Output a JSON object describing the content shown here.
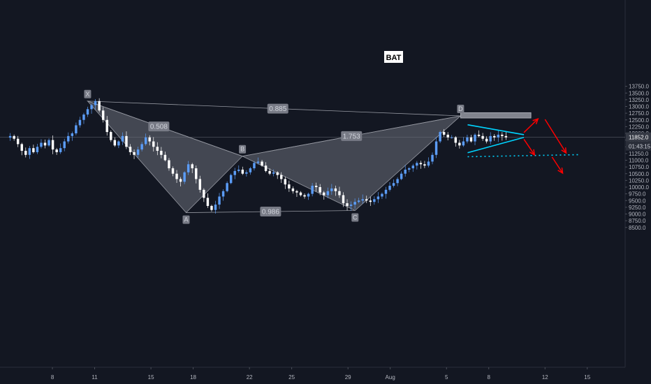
{
  "chart_data": {
    "type": "candlestick",
    "title": "BAT",
    "x_range": [
      "2020-07-05",
      "2020-08-16"
    ],
    "ylim": [
      8300,
      13800
    ],
    "y_ticks": [
      8500,
      8750,
      9000,
      9250,
      9500,
      9750,
      10000,
      10250,
      10500,
      10750,
      11000,
      11250,
      11500,
      11750,
      12000,
      12250,
      12500,
      12750,
      13000,
      13250,
      13500,
      13750
    ],
    "y_tick_labels": [
      "8500.0",
      "8750.0",
      "9000.0",
      "9250.0",
      "9500.0",
      "9750.0",
      "10000.0",
      "10250.0",
      "10500.0",
      "10750.0",
      "11000.0",
      "11250.0",
      "11500.0",
      "11750.0",
      "12000.0",
      "12250.0",
      "12500.0",
      "12750.0",
      "13000.0",
      "13250.0",
      "13500.0",
      "13750.0"
    ],
    "x_ticks": [
      {
        "date": "2020-07-08",
        "label": "8"
      },
      {
        "date": "2020-07-11",
        "label": "11"
      },
      {
        "date": "2020-07-15",
        "label": "15"
      },
      {
        "date": "2020-07-18",
        "label": "18"
      },
      {
        "date": "2020-07-22",
        "label": "22"
      },
      {
        "date": "2020-07-25",
        "label": "25"
      },
      {
        "date": "2020-07-29",
        "label": "29"
      },
      {
        "date": "2020-08-01",
        "label": "Aug"
      },
      {
        "date": "2020-08-05",
        "label": "5"
      },
      {
        "date": "2020-08-08",
        "label": "8"
      },
      {
        "date": "2020-08-12",
        "label": "12"
      },
      {
        "date": "2020-08-15",
        "label": "15"
      }
    ],
    "current_price": 11852.0,
    "current_price_label": "11852.0",
    "countdown_label": "01:43:15",
    "price_close": [
      11900,
      11800,
      11600,
      11350,
      11200,
      11450,
      11300,
      11500,
      11650,
      11550,
      11750,
      11400,
      11300,
      11450,
      11700,
      11900,
      12000,
      12300,
      12500,
      12700,
      12900,
      13050,
      13200,
      12850,
      12500,
      12050,
      11750,
      11550,
      11700,
      11900,
      11500,
      11300,
      11200,
      11400,
      11600,
      11850,
      11700,
      11500,
      11350,
      11200,
      11000,
      10700,
      10500,
      10300,
      10200,
      10550,
      10850,
      10700,
      10300,
      9900,
      9600,
      9300,
      9150,
      9350,
      9650,
      9850,
      10150,
      10450,
      10600,
      10650,
      10500,
      10550,
      10700,
      10900,
      10950,
      10800,
      10600,
      10500,
      10550,
      10450,
      10300,
      10100,
      9950,
      9850,
      9800,
      9700,
      9650,
      9750,
      10050,
      10000,
      9800,
      9700,
      9850,
      9950,
      9850,
      9700,
      9400,
      9300,
      9350,
      9450,
      9500,
      9550,
      9500,
      9450,
      9550,
      9650,
      9750,
      9900,
      10050,
      10150,
      10300,
      10500,
      10650,
      10700,
      10800,
      10900,
      10850,
      10800,
      10950,
      11200,
      11700,
      12050,
      11950,
      11850,
      11850,
      11650,
      11550,
      11700,
      11850,
      11700,
      11950,
      11900,
      11800,
      11700,
      11900,
      11850,
      11950,
      11900,
      11852
    ],
    "harmonic_pattern": {
      "name": "BAT",
      "points": [
        {
          "label": "X",
          "date": "2020-07-10T12:00",
          "price": 13200
        },
        {
          "label": "A",
          "date": "2020-07-17T12:00",
          "price": 9050
        },
        {
          "label": "B",
          "date": "2020-07-21T12:00",
          "price": 11150
        },
        {
          "label": "C",
          "date": "2020-07-29T12:00",
          "price": 9130
        },
        {
          "label": "D",
          "date": "2020-08-06T00:00",
          "price": 12650
        }
      ],
      "ratios": [
        {
          "between": "X-B",
          "label": "0.508"
        },
        {
          "between": "A-C",
          "label": "0.986"
        },
        {
          "between": "B-D",
          "label": "1.753"
        },
        {
          "between": "X-D",
          "label": "0.885"
        }
      ]
    },
    "target_zone": {
      "date_start": "2020-08-06T00:00",
      "date_end": "2020-08-11T00:00",
      "price_low": 12570,
      "price_high": 12770
    },
    "triangle": [
      {
        "date_start": "2020-08-06T12:00",
        "price_start": 12320,
        "date_end": "2020-08-10T12:00",
        "price_end": 11950
      },
      {
        "date_start": "2020-08-06T12:00",
        "price_start": 11280,
        "date_end": "2020-08-10T12:00",
        "price_end": 11850
      }
    ],
    "support_line": {
      "date_start": "2020-08-06T12:00",
      "date_end": "2020-08-14T12:00",
      "price": 11130
    },
    "arrows": [
      {
        "date_from": "2020-08-10T12:00",
        "price_from": 12030,
        "date_to": "2020-08-11T12:00",
        "price_to": 12540
      },
      {
        "date_from": "2020-08-10T12:00",
        "price_from": 11780,
        "date_to": "2020-08-11T06:00",
        "price_to": 11200
      },
      {
        "date_from": "2020-08-12T00:00",
        "price_from": 12520,
        "date_to": "2020-08-13T12:00",
        "price_to": 11270
      },
      {
        "date_from": "2020-08-12T12:00",
        "price_from": 11120,
        "date_to": "2020-08-13T06:00",
        "price_to": 10520
      }
    ],
    "colors": {
      "background": "#131722",
      "candle_up": "#5b9cf6",
      "candle_down": "#ffffff",
      "pattern_fill": "#6c6f7a",
      "pattern_line": "#9598a1",
      "triangle": "#00d4ff",
      "support_line": "#00d4ff",
      "arrow": "#ff0000",
      "target_zone": "#9598a1",
      "axis_text": "#b2b5be",
      "price_label_bg": "#363a45"
    }
  }
}
